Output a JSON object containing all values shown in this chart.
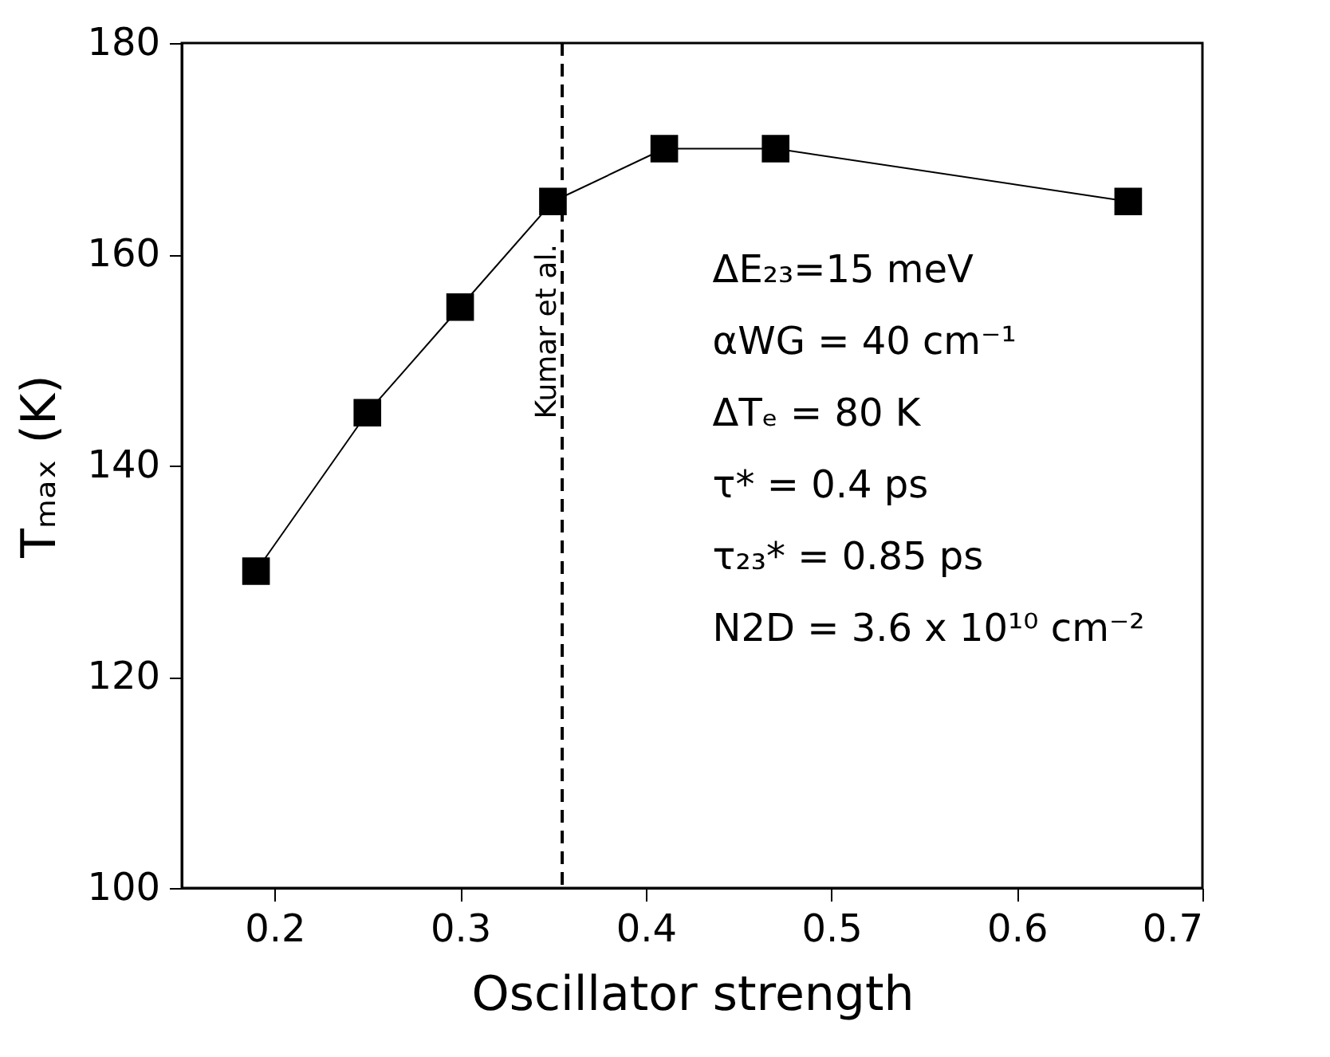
{
  "chart_data": {
    "type": "line",
    "xlabel": "Oscillator strength",
    "ylabel": "Tₘₐₓ (K)",
    "x": [
      0.19,
      0.25,
      0.3,
      0.35,
      0.41,
      0.47,
      0.66
    ],
    "series": [
      {
        "color": "#000000",
        "values": [
          130,
          145,
          155,
          165,
          170,
          170,
          165
        ]
      }
    ],
    "marker": "square",
    "line_style": "solid",
    "grid": false,
    "xlim": [
      0.15,
      0.7
    ],
    "xticks": [
      0.2,
      0.3,
      0.4,
      0.5,
      0.6,
      0.7
    ],
    "ylim": [
      100,
      180
    ],
    "yticks": [
      100,
      120,
      140,
      160,
      180
    ],
    "ref_lines": [
      {
        "axis": "x",
        "value": 0.355,
        "label": "Kumar et al.",
        "line_style": "dashed",
        "color": "#000000"
      }
    ],
    "annotations": [
      "ΔE₂₃=15 meV",
      "αWG = 40 cm⁻¹",
      "ΔTₑ = 80 K",
      "τ* = 0.4 ps",
      "τ₂₃* = 0.85 ps",
      "N2D = 3.6 x 10¹⁰ cm⁻²"
    ]
  }
}
